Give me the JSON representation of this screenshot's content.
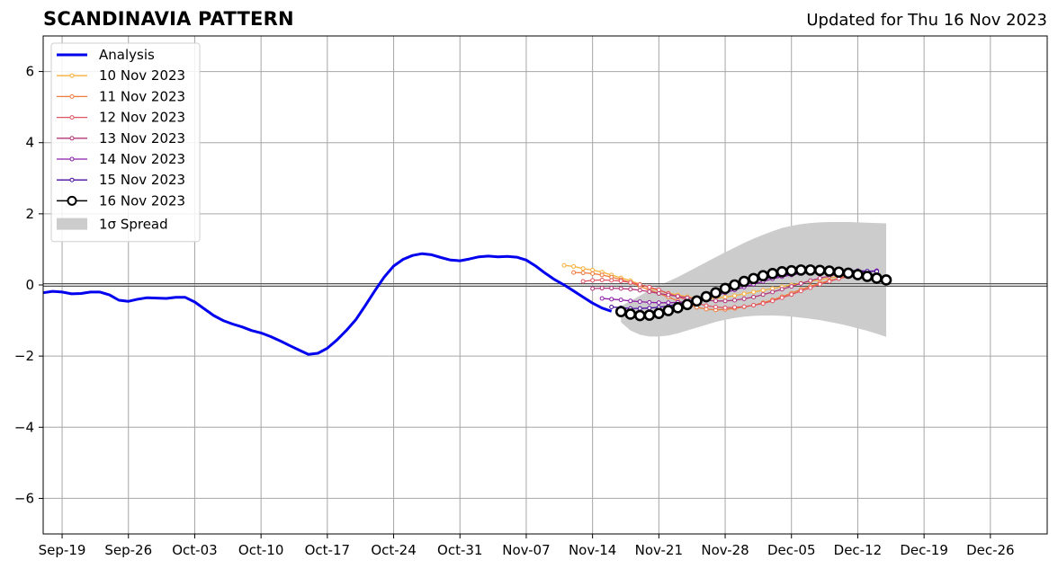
{
  "title": "SCANDINAVIA PATTERN",
  "subtitle": "Updated for Thu 16 Nov 2023",
  "chart_data": {
    "type": "line",
    "x_axis": {
      "ticks": [
        {
          "date": "2023-09-19",
          "label": "Sep-19"
        },
        {
          "date": "2023-09-26",
          "label": "Sep-26"
        },
        {
          "date": "2023-10-03",
          "label": "Oct-03"
        },
        {
          "date": "2023-10-10",
          "label": "Oct-10"
        },
        {
          "date": "2023-10-17",
          "label": "Oct-17"
        },
        {
          "date": "2023-10-24",
          "label": "Oct-24"
        },
        {
          "date": "2023-10-31",
          "label": "Oct-31"
        },
        {
          "date": "2023-11-07",
          "label": "Nov-07"
        },
        {
          "date": "2023-11-14",
          "label": "Nov-14"
        },
        {
          "date": "2023-11-21",
          "label": "Nov-21"
        },
        {
          "date": "2023-11-28",
          "label": "Nov-28"
        },
        {
          "date": "2023-12-05",
          "label": "Dec-05"
        },
        {
          "date": "2023-12-12",
          "label": "Dec-12"
        },
        {
          "date": "2023-12-19",
          "label": "Dec-19"
        },
        {
          "date": "2023-12-26",
          "label": "Dec-26"
        }
      ],
      "range": [
        "2023-09-17",
        "2024-01-01"
      ]
    },
    "y_axis": {
      "range": [
        -7,
        7
      ],
      "ticks": [
        -6,
        -4,
        -2,
        0,
        2,
        4,
        6
      ]
    },
    "grid": true,
    "legend_position": "top-left",
    "series": [
      {
        "name": "Analysis",
        "color": "#0000ee",
        "style": "line",
        "points": [
          [
            "2023-09-17",
            -0.22
          ],
          [
            "2023-09-18",
            -0.18
          ],
          [
            "2023-09-19",
            -0.2
          ],
          [
            "2023-09-20",
            -0.25
          ],
          [
            "2023-09-21",
            -0.24
          ],
          [
            "2023-09-22",
            -0.2
          ],
          [
            "2023-09-23",
            -0.2
          ],
          [
            "2023-09-24",
            -0.28
          ],
          [
            "2023-09-25",
            -0.43
          ],
          [
            "2023-09-26",
            -0.46
          ],
          [
            "2023-09-27",
            -0.4
          ],
          [
            "2023-09-28",
            -0.36
          ],
          [
            "2023-09-29",
            -0.37
          ],
          [
            "2023-09-30",
            -0.38
          ],
          [
            "2023-10-01",
            -0.35
          ],
          [
            "2023-10-02",
            -0.35
          ],
          [
            "2023-10-03",
            -0.48
          ],
          [
            "2023-10-04",
            -0.67
          ],
          [
            "2023-10-05",
            -0.86
          ],
          [
            "2023-10-06",
            -1.0
          ],
          [
            "2023-10-07",
            -1.1
          ],
          [
            "2023-10-08",
            -1.18
          ],
          [
            "2023-10-09",
            -1.28
          ],
          [
            "2023-10-10",
            -1.35
          ],
          [
            "2023-10-11",
            -1.45
          ],
          [
            "2023-10-12",
            -1.57
          ],
          [
            "2023-10-13",
            -1.7
          ],
          [
            "2023-10-14",
            -1.83
          ],
          [
            "2023-10-15",
            -1.95
          ],
          [
            "2023-10-16",
            -1.92
          ],
          [
            "2023-10-17",
            -1.78
          ],
          [
            "2023-10-18",
            -1.55
          ],
          [
            "2023-10-19",
            -1.28
          ],
          [
            "2023-10-20",
            -0.98
          ],
          [
            "2023-10-21",
            -0.58
          ],
          [
            "2023-10-22",
            -0.17
          ],
          [
            "2023-10-23",
            0.22
          ],
          [
            "2023-10-24",
            0.53
          ],
          [
            "2023-10-25",
            0.72
          ],
          [
            "2023-10-26",
            0.83
          ],
          [
            "2023-10-27",
            0.88
          ],
          [
            "2023-10-28",
            0.85
          ],
          [
            "2023-10-29",
            0.77
          ],
          [
            "2023-10-30",
            0.7
          ],
          [
            "2023-10-31",
            0.68
          ],
          [
            "2023-11-01",
            0.73
          ],
          [
            "2023-11-02",
            0.79
          ],
          [
            "2023-11-03",
            0.81
          ],
          [
            "2023-11-04",
            0.79
          ],
          [
            "2023-11-05",
            0.8
          ],
          [
            "2023-11-06",
            0.78
          ],
          [
            "2023-11-07",
            0.7
          ],
          [
            "2023-11-08",
            0.53
          ],
          [
            "2023-11-09",
            0.33
          ],
          [
            "2023-11-10",
            0.15
          ],
          [
            "2023-11-11",
            0.0
          ],
          [
            "2023-11-12",
            -0.17
          ],
          [
            "2023-11-13",
            -0.34
          ],
          [
            "2023-11-14",
            -0.51
          ],
          [
            "2023-11-15",
            -0.65
          ],
          [
            "2023-11-16",
            -0.74
          ]
        ]
      },
      {
        "name": "10 Nov 2023",
        "color": "#f7b03a",
        "style": "dots",
        "start": "2023-11-11",
        "values": [
          0.55,
          0.52,
          0.46,
          0.42,
          0.36,
          0.28,
          0.2,
          0.12,
          0.02,
          -0.08,
          -0.16,
          -0.23,
          -0.28,
          -0.33,
          -0.37,
          -0.38,
          -0.37,
          -0.34,
          -0.3,
          -0.25,
          -0.2,
          -0.15,
          -0.1,
          -0.05,
          0.0,
          0.05,
          0.1,
          0.15,
          0.2,
          0.23,
          0.25
        ]
      },
      {
        "name": "11 Nov 2023",
        "color": "#ee7a3c",
        "style": "dots",
        "start": "2023-11-12",
        "values": [
          0.35,
          0.34,
          0.32,
          0.28,
          0.22,
          0.15,
          0.07,
          -0.04,
          -0.14,
          -0.24,
          -0.34,
          -0.45,
          -0.54,
          -0.63,
          -0.68,
          -0.7,
          -0.69,
          -0.66,
          -0.62,
          -0.57,
          -0.5,
          -0.42,
          -0.33,
          -0.23,
          -0.13,
          -0.04,
          0.05,
          0.12,
          0.18,
          0.23
        ]
      },
      {
        "name": "12 Nov 2023",
        "color": "#e15462",
        "style": "dots",
        "start": "2023-11-13",
        "values": [
          0.1,
          0.13,
          0.14,
          0.13,
          0.11,
          0.07,
          0.01,
          -0.06,
          -0.14,
          -0.24,
          -0.33,
          -0.42,
          -0.51,
          -0.58,
          -0.62,
          -0.64,
          -0.63,
          -0.61,
          -0.57,
          -0.52,
          -0.45,
          -0.36,
          -0.27,
          -0.17,
          -0.08,
          0.02,
          0.1,
          0.18,
          0.25,
          0.3
        ]
      },
      {
        "name": "13 Nov 2023",
        "color": "#b5367a",
        "style": "dots",
        "start": "2023-11-14",
        "values": [
          -0.1,
          -0.09,
          -0.09,
          -0.1,
          -0.12,
          -0.15,
          -0.19,
          -0.24,
          -0.28,
          -0.32,
          -0.36,
          -0.4,
          -0.43,
          -0.45,
          -0.45,
          -0.43,
          -0.39,
          -0.34,
          -0.27,
          -0.2,
          -0.12,
          -0.04,
          0.04,
          0.12,
          0.19,
          0.25,
          0.3,
          0.33,
          0.34,
          0.34
        ]
      },
      {
        "name": "14 Nov 2023",
        "color": "#8a1da6",
        "style": "dots",
        "start": "2023-11-15",
        "values": [
          -0.38,
          -0.4,
          -0.42,
          -0.45,
          -0.47,
          -0.49,
          -0.5,
          -0.5,
          -0.49,
          -0.47,
          -0.43,
          -0.37,
          -0.3,
          -0.22,
          -0.14,
          -0.06,
          0.02,
          0.1,
          0.17,
          0.23,
          0.28,
          0.32,
          0.35,
          0.37,
          0.38,
          0.38,
          0.38,
          0.37,
          0.38,
          0.4
        ]
      },
      {
        "name": "15 Nov 2023",
        "color": "#4a0c9e",
        "style": "dots",
        "start": "2023-11-16",
        "values": [
          -0.62,
          -0.64,
          -0.66,
          -0.66,
          -0.65,
          -0.63,
          -0.59,
          -0.54,
          -0.47,
          -0.39,
          -0.3,
          -0.21,
          -0.12,
          -0.04,
          0.04,
          0.11,
          0.17,
          0.22,
          0.27,
          0.31,
          0.34,
          0.37,
          0.39,
          0.4,
          0.41,
          0.41,
          0.4,
          0.39,
          0.38
        ]
      },
      {
        "name": "16 Nov 2023",
        "color": "#000000",
        "style": "circles",
        "start": "2023-11-17",
        "values": [
          -0.75,
          -0.82,
          -0.86,
          -0.85,
          -0.8,
          -0.72,
          -0.64,
          -0.55,
          -0.45,
          -0.33,
          -0.22,
          -0.1,
          0.0,
          0.1,
          0.18,
          0.26,
          0.32,
          0.37,
          0.4,
          0.42,
          0.42,
          0.41,
          0.39,
          0.36,
          0.33,
          0.29,
          0.24,
          0.19,
          0.14
        ]
      }
    ],
    "spread": {
      "name": "1σ Spread",
      "color": "#cccccc",
      "start": "2023-11-17",
      "upper": [
        -0.6,
        -0.45,
        -0.3,
        -0.15,
        -0.02,
        0.1,
        0.22,
        0.36,
        0.5,
        0.64,
        0.78,
        0.92,
        1.05,
        1.18,
        1.3,
        1.41,
        1.51,
        1.6,
        1.66,
        1.71,
        1.74,
        1.76,
        1.77,
        1.77,
        1.77,
        1.76,
        1.75,
        1.74,
        1.73
      ],
      "lower": [
        -1.05,
        -1.28,
        -1.4,
        -1.45,
        -1.45,
        -1.42,
        -1.36,
        -1.28,
        -1.2,
        -1.12,
        -1.04,
        -0.98,
        -0.93,
        -0.89,
        -0.87,
        -0.86,
        -0.86,
        -0.87,
        -0.89,
        -0.92,
        -0.95,
        -0.99,
        -1.04,
        -1.09,
        -1.15,
        -1.22,
        -1.29,
        -1.37,
        -1.46
      ]
    }
  }
}
